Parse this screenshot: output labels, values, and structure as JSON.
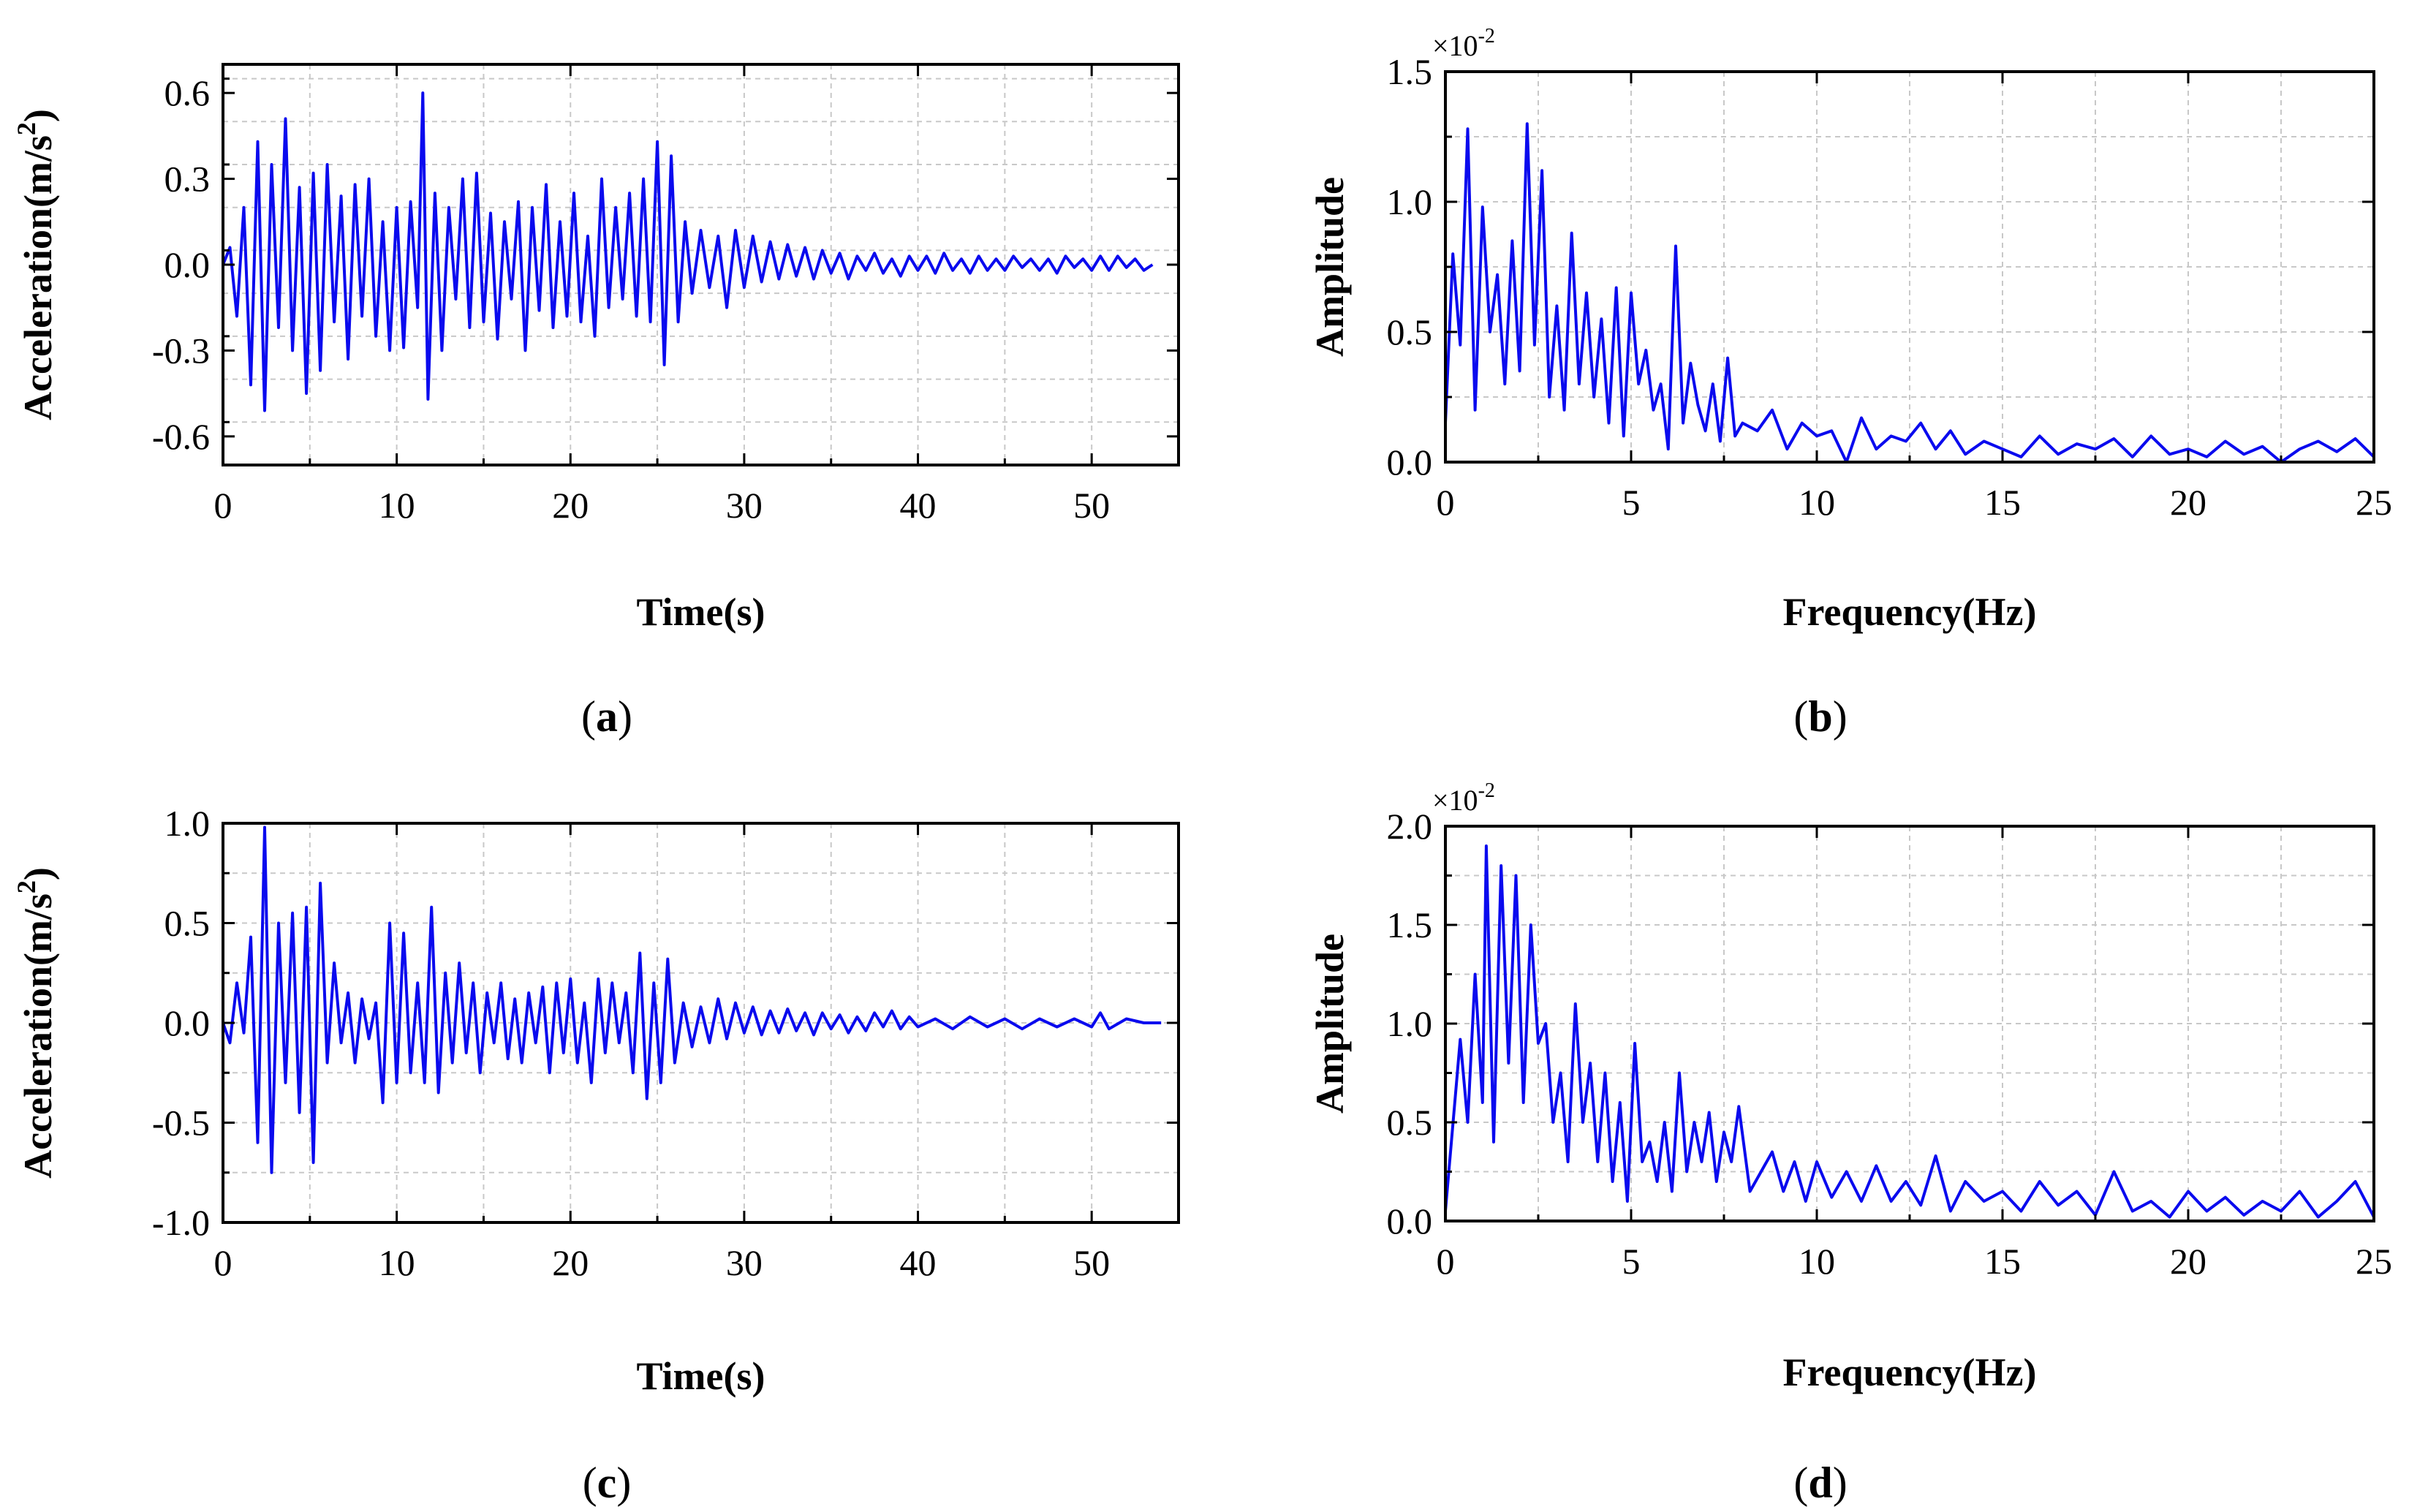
{
  "chart_data": [
    {
      "id": "a",
      "type": "line",
      "caption": "a",
      "xlabel": "Time(s)",
      "ylabel": "Acceleration(m/s",
      "ylabel_sup": "2",
      "ylabel_end": ")",
      "xlim": [
        0,
        55
      ],
      "ylim": [
        -0.7,
        0.7
      ],
      "xticks": [
        0,
        10,
        20,
        30,
        40,
        50
      ],
      "yticks": [
        -0.6,
        -0.3,
        0.0,
        0.3,
        0.6
      ],
      "xtick_labels": [
        "0",
        "10",
        "20",
        "30",
        "40",
        "50"
      ],
      "ytick_labels": [
        "-0.6",
        "-0.3",
        "0.0",
        "0.3",
        "0.6"
      ],
      "grid": true,
      "color": "#0a0aee",
      "series": [
        {
          "name": "Acceleration",
          "x": [
            0,
            0.4,
            0.8,
            1.2,
            1.6,
            2.0,
            2.4,
            2.8,
            3.2,
            3.6,
            4.0,
            4.4,
            4.8,
            5.2,
            5.6,
            6.0,
            6.4,
            6.8,
            7.2,
            7.6,
            8.0,
            8.4,
            8.8,
            9.2,
            9.6,
            10.0,
            10.4,
            10.8,
            11.2,
            11.5,
            11.8,
            12.2,
            12.6,
            13.0,
            13.4,
            13.8,
            14.2,
            14.6,
            15.0,
            15.4,
            15.8,
            16.2,
            16.6,
            17.0,
            17.4,
            17.8,
            18.2,
            18.6,
            19.0,
            19.4,
            19.8,
            20.2,
            20.6,
            21.0,
            21.4,
            21.8,
            22.2,
            22.6,
            23.0,
            23.4,
            23.8,
            24.2,
            24.6,
            25.0,
            25.4,
            25.8,
            26.2,
            26.6,
            27.0,
            27.5,
            28.0,
            28.5,
            29.0,
            29.5,
            30.0,
            30.5,
            31.0,
            31.5,
            32.0,
            32.5,
            33.0,
            33.5,
            34.0,
            34.5,
            35.0,
            35.5,
            36.0,
            36.5,
            37.0,
            37.5,
            38.0,
            38.5,
            39.0,
            39.5,
            40.0,
            40.5,
            41.0,
            41.5,
            42.0,
            42.5,
            43.0,
            43.5,
            44.0,
            44.5,
            45.0,
            45.5,
            46.0,
            46.5,
            47.0,
            47.5,
            48.0,
            48.5,
            49.0,
            49.5,
            50.0,
            50.5,
            51.0,
            51.5,
            52.0,
            52.5,
            53.0,
            53.5
          ],
          "values": [
            0.0,
            0.06,
            -0.18,
            0.2,
            -0.42,
            0.43,
            -0.51,
            0.35,
            -0.22,
            0.51,
            -0.3,
            0.27,
            -0.45,
            0.32,
            -0.37,
            0.35,
            -0.2,
            0.24,
            -0.33,
            0.28,
            -0.18,
            0.3,
            -0.25,
            0.15,
            -0.3,
            0.2,
            -0.29,
            0.22,
            -0.15,
            0.6,
            -0.47,
            0.25,
            -0.3,
            0.2,
            -0.12,
            0.3,
            -0.22,
            0.32,
            -0.2,
            0.18,
            -0.26,
            0.15,
            -0.12,
            0.22,
            -0.3,
            0.2,
            -0.16,
            0.28,
            -0.22,
            0.15,
            -0.18,
            0.25,
            -0.2,
            0.1,
            -0.25,
            0.3,
            -0.15,
            0.2,
            -0.12,
            0.25,
            -0.18,
            0.3,
            -0.2,
            0.43,
            -0.35,
            0.38,
            -0.2,
            0.15,
            -0.1,
            0.12,
            -0.08,
            0.1,
            -0.15,
            0.12,
            -0.08,
            0.1,
            -0.06,
            0.08,
            -0.05,
            0.07,
            -0.04,
            0.06,
            -0.05,
            0.05,
            -0.03,
            0.04,
            -0.05,
            0.03,
            -0.02,
            0.04,
            -0.03,
            0.02,
            -0.04,
            0.03,
            -0.02,
            0.03,
            -0.03,
            0.04,
            -0.02,
            0.02,
            -0.03,
            0.03,
            -0.02,
            0.02,
            -0.02,
            0.03,
            -0.01,
            0.02,
            -0.02,
            0.02,
            -0.03,
            0.03,
            -0.01,
            0.02,
            -0.02,
            0.03,
            -0.02,
            0.03,
            -0.01,
            0.02,
            -0.02,
            0.0
          ]
        }
      ]
    },
    {
      "id": "b",
      "type": "line",
      "caption": "b",
      "xlabel": "Frequency(Hz)",
      "ylabel": "Amplitude",
      "sci_prefix": "×10",
      "sci_exp": "-2",
      "xlim": [
        0,
        25
      ],
      "ylim": [
        0,
        1.5
      ],
      "xticks": [
        0,
        5,
        10,
        15,
        20,
        25
      ],
      "yticks": [
        0.0,
        0.5,
        1.0,
        1.5
      ],
      "xtick_labels": [
        "0",
        "5",
        "10",
        "15",
        "20",
        "25"
      ],
      "ytick_labels": [
        "0.0",
        "0.5",
        "1.0",
        "1.5"
      ],
      "grid": true,
      "color": "#0a0aee",
      "series": [
        {
          "name": "Amplitude (×10^-2)",
          "x": [
            0,
            0.2,
            0.4,
            0.6,
            0.8,
            1.0,
            1.2,
            1.4,
            1.6,
            1.8,
            2.0,
            2.2,
            2.4,
            2.6,
            2.8,
            3.0,
            3.2,
            3.4,
            3.6,
            3.8,
            4.0,
            4.2,
            4.4,
            4.6,
            4.8,
            5.0,
            5.2,
            5.4,
            5.6,
            5.8,
            6.0,
            6.2,
            6.4,
            6.6,
            6.8,
            7.0,
            7.2,
            7.4,
            7.6,
            7.8,
            8.0,
            8.4,
            8.8,
            9.2,
            9.6,
            10.0,
            10.4,
            10.8,
            11.2,
            11.6,
            12.0,
            12.4,
            12.8,
            13.2,
            13.6,
            14.0,
            14.5,
            15.0,
            15.5,
            16.0,
            16.5,
            17.0,
            17.5,
            18.0,
            18.5,
            19.0,
            19.5,
            20.0,
            20.5,
            21.0,
            21.5,
            22.0,
            22.5,
            23.0,
            23.5,
            24.0,
            24.5,
            25.0
          ],
          "values": [
            0.15,
            0.8,
            0.45,
            1.28,
            0.2,
            0.98,
            0.5,
            0.72,
            0.3,
            0.85,
            0.35,
            1.3,
            0.45,
            1.12,
            0.25,
            0.6,
            0.2,
            0.88,
            0.3,
            0.65,
            0.25,
            0.55,
            0.15,
            0.67,
            0.1,
            0.65,
            0.3,
            0.43,
            0.2,
            0.3,
            0.05,
            0.83,
            0.15,
            0.38,
            0.22,
            0.12,
            0.3,
            0.08,
            0.4,
            0.1,
            0.15,
            0.12,
            0.2,
            0.05,
            0.15,
            0.1,
            0.12,
            0.0,
            0.17,
            0.05,
            0.1,
            0.08,
            0.15,
            0.05,
            0.12,
            0.03,
            0.08,
            0.05,
            0.02,
            0.1,
            0.03,
            0.07,
            0.05,
            0.09,
            0.02,
            0.1,
            0.03,
            0.05,
            0.02,
            0.08,
            0.03,
            0.06,
            0.0,
            0.05,
            0.08,
            0.04,
            0.09,
            0.02
          ]
        }
      ]
    },
    {
      "id": "c",
      "type": "line",
      "caption": "c",
      "xlabel": "Time(s)",
      "ylabel": "Acceleration(m/s",
      "ylabel_sup": "2",
      "ylabel_end": ")",
      "xlim": [
        0,
        55
      ],
      "ylim": [
        -1.0,
        1.0
      ],
      "xticks": [
        0,
        10,
        20,
        30,
        40,
        50
      ],
      "yticks": [
        -1.0,
        -0.5,
        0.0,
        0.5,
        1.0
      ],
      "xtick_labels": [
        "0",
        "10",
        "20",
        "30",
        "40",
        "50"
      ],
      "ytick_labels": [
        "-1.0",
        "-0.5",
        "0.0",
        "0.5",
        "1.0"
      ],
      "grid": true,
      "color": "#0a0aee",
      "series": [
        {
          "name": "Acceleration",
          "x": [
            0,
            0.4,
            0.8,
            1.2,
            1.6,
            2.0,
            2.4,
            2.8,
            3.2,
            3.6,
            4.0,
            4.4,
            4.8,
            5.2,
            5.6,
            6.0,
            6.4,
            6.8,
            7.2,
            7.6,
            8.0,
            8.4,
            8.8,
            9.2,
            9.6,
            10.0,
            10.4,
            10.8,
            11.2,
            11.6,
            12.0,
            12.4,
            12.8,
            13.2,
            13.6,
            14.0,
            14.4,
            14.8,
            15.2,
            15.6,
            16.0,
            16.4,
            16.8,
            17.2,
            17.6,
            18.0,
            18.4,
            18.8,
            19.2,
            19.6,
            20.0,
            20.4,
            20.8,
            21.2,
            21.6,
            22.0,
            22.4,
            22.8,
            23.2,
            23.6,
            24.0,
            24.4,
            24.8,
            25.2,
            25.6,
            26.0,
            26.5,
            27.0,
            27.5,
            28.0,
            28.5,
            29.0,
            29.5,
            30.0,
            30.5,
            31.0,
            31.5,
            32.0,
            32.5,
            33.0,
            33.5,
            34.0,
            34.5,
            35.0,
            35.5,
            36.0,
            36.5,
            37.0,
            37.5,
            38.0,
            38.5,
            39.0,
            39.5,
            40.0,
            41.0,
            42.0,
            43.0,
            44.0,
            45.0,
            46.0,
            47.0,
            48.0,
            49.0,
            50.0,
            50.5,
            51.0,
            52.0,
            53.0,
            54.0
          ],
          "values": [
            0.0,
            -0.1,
            0.2,
            -0.05,
            0.43,
            -0.6,
            0.98,
            -0.75,
            0.5,
            -0.3,
            0.55,
            -0.45,
            0.58,
            -0.7,
            0.7,
            -0.2,
            0.3,
            -0.1,
            0.15,
            -0.2,
            0.12,
            -0.08,
            0.1,
            -0.4,
            0.5,
            -0.3,
            0.45,
            -0.25,
            0.2,
            -0.3,
            0.58,
            -0.35,
            0.25,
            -0.2,
            0.3,
            -0.15,
            0.2,
            -0.25,
            0.15,
            -0.1,
            0.2,
            -0.18,
            0.12,
            -0.2,
            0.15,
            -0.1,
            0.18,
            -0.25,
            0.2,
            -0.15,
            0.22,
            -0.2,
            0.1,
            -0.3,
            0.22,
            -0.15,
            0.2,
            -0.1,
            0.15,
            -0.25,
            0.35,
            -0.38,
            0.2,
            -0.3,
            0.32,
            -0.2,
            0.1,
            -0.12,
            0.08,
            -0.1,
            0.12,
            -0.08,
            0.1,
            -0.05,
            0.08,
            -0.06,
            0.06,
            -0.05,
            0.07,
            -0.04,
            0.05,
            -0.06,
            0.05,
            -0.03,
            0.04,
            -0.05,
            0.03,
            -0.04,
            0.05,
            -0.02,
            0.06,
            -0.03,
            0.03,
            -0.02,
            0.02,
            -0.03,
            0.03,
            -0.02,
            0.02,
            -0.03,
            0.02,
            -0.02,
            0.02,
            -0.02,
            0.05,
            -0.03,
            0.02,
            0.0,
            0.0
          ]
        }
      ]
    },
    {
      "id": "d",
      "type": "line",
      "caption": "d",
      "xlabel": "Frequency(Hz)",
      "ylabel": "Amplitude",
      "sci_prefix": "×10",
      "sci_exp": "-2",
      "xlim": [
        0,
        25
      ],
      "ylim": [
        0,
        2.0
      ],
      "xticks": [
        0,
        5,
        10,
        15,
        20,
        25
      ],
      "yticks": [
        0.0,
        0.5,
        1.0,
        1.5,
        2.0
      ],
      "xtick_labels": [
        "0",
        "5",
        "10",
        "15",
        "20",
        "25"
      ],
      "ytick_labels": [
        "0.0",
        "0.5",
        "1.0",
        "1.5",
        "2.0"
      ],
      "grid": true,
      "color": "#0a0aee",
      "series": [
        {
          "name": "Amplitude (×10^-2)",
          "x": [
            0,
            0.4,
            0.6,
            0.8,
            1.0,
            1.1,
            1.3,
            1.5,
            1.7,
            1.9,
            2.1,
            2.3,
            2.5,
            2.7,
            2.9,
            3.1,
            3.3,
            3.5,
            3.7,
            3.9,
            4.1,
            4.3,
            4.5,
            4.7,
            4.9,
            5.1,
            5.3,
            5.5,
            5.7,
            5.9,
            6.1,
            6.3,
            6.5,
            6.7,
            6.9,
            7.1,
            7.3,
            7.5,
            7.7,
            7.9,
            8.2,
            8.5,
            8.8,
            9.1,
            9.4,
            9.7,
            10.0,
            10.4,
            10.8,
            11.2,
            11.6,
            12.0,
            12.4,
            12.8,
            13.2,
            13.6,
            14.0,
            14.5,
            15.0,
            15.5,
            16.0,
            16.5,
            17.0,
            17.5,
            18.0,
            18.5,
            19.0,
            19.5,
            20.0,
            20.5,
            21.0,
            21.5,
            22.0,
            22.5,
            23.0,
            23.5,
            24.0,
            24.5,
            25.0
          ],
          "values": [
            0.05,
            0.92,
            0.5,
            1.25,
            0.6,
            1.9,
            0.4,
            1.8,
            0.8,
            1.75,
            0.6,
            1.5,
            0.9,
            1.0,
            0.5,
            0.75,
            0.3,
            1.1,
            0.5,
            0.8,
            0.3,
            0.75,
            0.2,
            0.6,
            0.1,
            0.9,
            0.3,
            0.4,
            0.2,
            0.5,
            0.15,
            0.75,
            0.25,
            0.5,
            0.3,
            0.55,
            0.2,
            0.45,
            0.3,
            0.58,
            0.15,
            0.25,
            0.35,
            0.15,
            0.3,
            0.1,
            0.3,
            0.12,
            0.25,
            0.1,
            0.28,
            0.1,
            0.2,
            0.08,
            0.33,
            0.05,
            0.2,
            0.1,
            0.15,
            0.05,
            0.2,
            0.08,
            0.15,
            0.03,
            0.25,
            0.05,
            0.1,
            0.02,
            0.15,
            0.05,
            0.12,
            0.03,
            0.1,
            0.05,
            0.15,
            0.02,
            0.1,
            0.2,
            0.02
          ]
        }
      ]
    }
  ]
}
